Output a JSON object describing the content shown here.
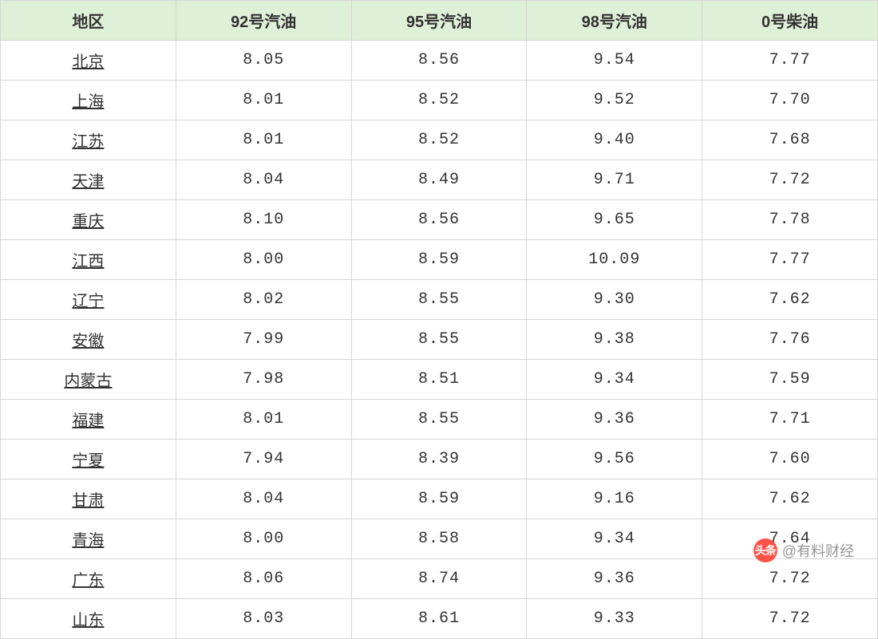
{
  "table": {
    "columns": [
      "地区",
      "92号汽油",
      "95号汽油",
      "98号汽油",
      "0号柴油"
    ],
    "rows": [
      [
        "北京",
        "8.05",
        "8.56",
        "9.54",
        "7.77"
      ],
      [
        "上海",
        "8.01",
        "8.52",
        "9.52",
        "7.70"
      ],
      [
        "江苏",
        "8.01",
        "8.52",
        "9.40",
        "7.68"
      ],
      [
        "天津",
        "8.04",
        "8.49",
        "9.71",
        "7.72"
      ],
      [
        "重庆",
        "8.10",
        "8.56",
        "9.65",
        "7.78"
      ],
      [
        "江西",
        "8.00",
        "8.59",
        "10.09",
        "7.77"
      ],
      [
        "辽宁",
        "8.02",
        "8.55",
        "9.30",
        "7.62"
      ],
      [
        "安徽",
        "7.99",
        "8.55",
        "9.38",
        "7.76"
      ],
      [
        "内蒙古",
        "7.98",
        "8.51",
        "9.34",
        "7.59"
      ],
      [
        "福建",
        "8.01",
        "8.55",
        "9.36",
        "7.71"
      ],
      [
        "宁夏",
        "7.94",
        "8.39",
        "9.56",
        "7.60"
      ],
      [
        "甘肃",
        "8.04",
        "8.59",
        "9.16",
        "7.62"
      ],
      [
        "青海",
        "8.00",
        "8.58",
        "9.34",
        "7.64"
      ],
      [
        "广东",
        "8.06",
        "8.74",
        "9.36",
        "7.72"
      ],
      [
        "山东",
        "8.03",
        "8.61",
        "9.33",
        "7.72"
      ]
    ],
    "header_bg": "#dff0d8",
    "border_color": "#d6d6d6",
    "text_color": "#333333",
    "header_fontsize": 20,
    "cell_fontsize": 20,
    "region_underline": true,
    "column_widths_pct": [
      20,
      20,
      20,
      20,
      20
    ]
  },
  "watermark": {
    "icon_text": "头条",
    "icon_bg": "#ff3b30",
    "icon_fg": "#ffffff",
    "label": "@有料财经",
    "label_color": "#888888"
  }
}
